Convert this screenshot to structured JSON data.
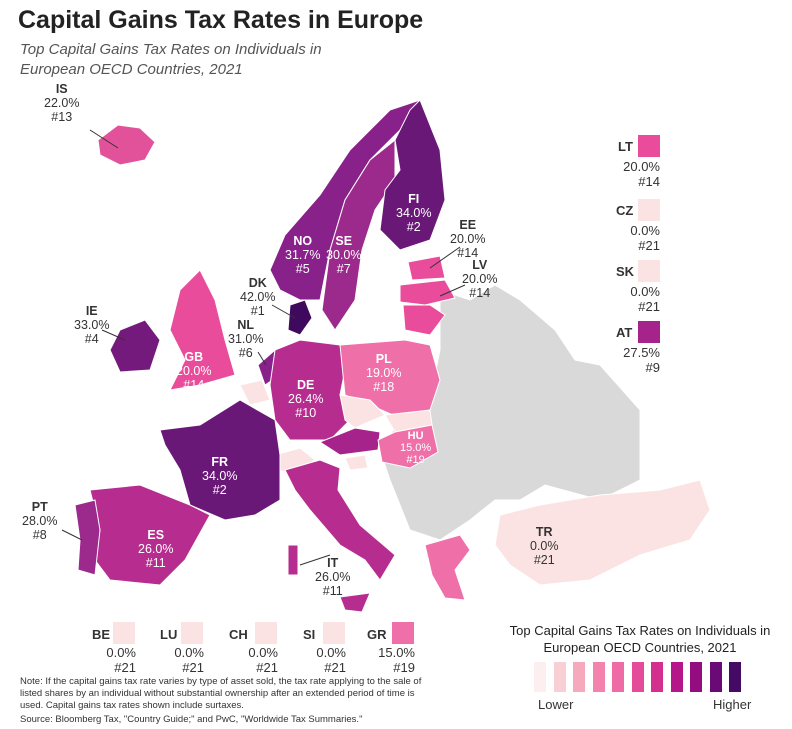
{
  "title": "Capital Gains Tax Rates in Europe",
  "subtitle": "Top Capital Gains Tax Rates on Individuals in European OECD Countries, 2021",
  "colors": {
    "zero": "#fce3e3",
    "c15": "#ef6fa8",
    "c20": "#e94c9a",
    "c22": "#e2529b",
    "c26": "#b62c8f",
    "c27": "#a7238c",
    "c28": "#9c2a8c",
    "c31": "#88218a",
    "c33": "#741a7c",
    "c34": "#6a1877",
    "c42": "#3f0a5e",
    "nodata": "#d9d9d9"
  },
  "countries": [
    {
      "code": "IS",
      "rate": "22.0%",
      "rank": "#13"
    },
    {
      "code": "IE",
      "rate": "33.0%",
      "rank": "#4"
    },
    {
      "code": "DK",
      "rate": "42.0%",
      "rank": "#1"
    },
    {
      "code": "NL",
      "rate": "31.0%",
      "rank": "#6"
    },
    {
      "code": "GB",
      "rate": "20.0%",
      "rank": "#14"
    },
    {
      "code": "NO",
      "rate": "31.7%",
      "rank": "#5"
    },
    {
      "code": "SE",
      "rate": "30.0%",
      "rank": "#7"
    },
    {
      "code": "FI",
      "rate": "34.0%",
      "rank": "#2"
    },
    {
      "code": "EE",
      "rate": "20.0%",
      "rank": "#14"
    },
    {
      "code": "LV",
      "rate": "20.0%",
      "rank": "#14"
    },
    {
      "code": "PL",
      "rate": "19.0%",
      "rank": "#18"
    },
    {
      "code": "DE",
      "rate": "26.4%",
      "rank": "#10"
    },
    {
      "code": "FR",
      "rate": "34.0%",
      "rank": "#2"
    },
    {
      "code": "ES",
      "rate": "26.0%",
      "rank": "#11"
    },
    {
      "code": "PT",
      "rate": "28.0%",
      "rank": "#8"
    },
    {
      "code": "IT",
      "rate": "26.0%",
      "rank": "#11"
    },
    {
      "code": "HU",
      "rate": "15.0%",
      "rank": "#19"
    },
    {
      "code": "TR",
      "rate": "0.0%",
      "rank": "#21"
    }
  ],
  "side_boxes": [
    {
      "code": "LT",
      "rate": "20.0%",
      "rank": "#14"
    },
    {
      "code": "CZ",
      "rate": "0.0%",
      "rank": "#21"
    },
    {
      "code": "SK",
      "rate": "0.0%",
      "rank": "#21"
    },
    {
      "code": "AT",
      "rate": "27.5%",
      "rank": "#9"
    }
  ],
  "bottom_boxes": [
    {
      "code": "BE",
      "rate": "0.0%",
      "rank": "#21"
    },
    {
      "code": "LU",
      "rate": "0.0%",
      "rank": "#21"
    },
    {
      "code": "CH",
      "rate": "0.0%",
      "rank": "#21"
    },
    {
      "code": "SI",
      "rate": "0.0%",
      "rank": "#21"
    },
    {
      "code": "GR",
      "rate": "15.0%",
      "rank": "#19"
    }
  ],
  "legend": {
    "title": "Top Capital Gains Tax Rates on Individuals in European OECD Countries, 2021",
    "low": "Lower",
    "high": "Higher",
    "swatches": [
      "#fdeff0",
      "#f9cfd6",
      "#f6a9bd",
      "#f383ad",
      "#ee6ba5",
      "#e44b98",
      "#d42f8e",
      "#b5168a",
      "#930c80",
      "#6a0a76",
      "#440a64"
    ]
  },
  "note": "Note: If the capital gains tax rate varies by type of asset sold, the tax rate applying to the sale of listed shares by an individual without substantial ownership after an extended period of time is used. Capital gains tax rates shown include surtaxes.",
  "source": "Source: Bloomberg Tax, \"Country Guide;\" and PwC, \"Worldwide Tax Summaries.\""
}
